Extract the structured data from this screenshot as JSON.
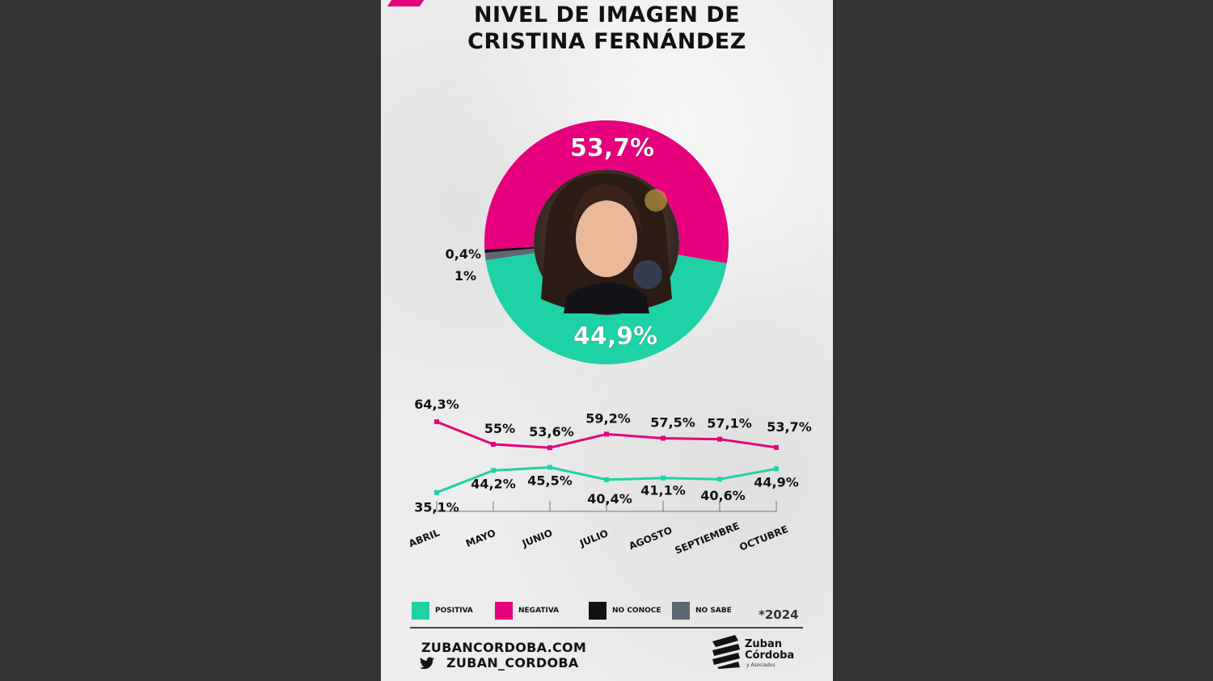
{
  "header": {
    "title_line1": "NIVEL DE IMAGEN DE",
    "title_line2": "CRISTINA FERNÁNDEZ"
  },
  "colors": {
    "positiva": "#1fd1a6",
    "negativa": "#e6007e",
    "no_conoce": "#111111",
    "no_sabe": "#5f6775"
  },
  "chart_data": [
    {
      "type": "pie",
      "variant": "donut",
      "slices": [
        {
          "name": "NEGATIVA",
          "value": 53.7,
          "label": "53,7%"
        },
        {
          "name": "POSITIVA",
          "value": 44.9,
          "label": "44,9%"
        },
        {
          "name": "NO SABE",
          "value": 1.0,
          "label": "1%"
        },
        {
          "name": "NO CONOCE",
          "value": 0.4,
          "label": "0,4%"
        }
      ]
    },
    {
      "type": "line",
      "categories": [
        "ABRIL",
        "MAYO",
        "JUNIO",
        "JULIO",
        "AGOSTO",
        "SEPTIEMBRE",
        "OCTUBRE"
      ],
      "series": [
        {
          "name": "NEGATIVA",
          "values": [
            64.3,
            55,
            53.6,
            59.2,
            57.5,
            57.1,
            53.7
          ],
          "labels": [
            "64,3%",
            "55%",
            "53,6%",
            "59,2%",
            "57,5%",
            "57,1%",
            "53,7%"
          ]
        },
        {
          "name": "POSITIVA",
          "values": [
            35.1,
            44.2,
            45.5,
            40.4,
            41.1,
            40.6,
            44.9
          ],
          "labels": [
            "35,1%",
            "44,2%",
            "45,5%",
            "40,4%",
            "41,1%",
            "40,6%",
            "44,9%"
          ]
        }
      ],
      "ylim": [
        20,
        80
      ]
    }
  ],
  "legend": [
    {
      "label": "POSITIVA",
      "color": "#1fd1a6"
    },
    {
      "label": "NEGATIVA",
      "color": "#e6007e"
    },
    {
      "label": "NO CONOCE",
      "color": "#111111"
    },
    {
      "label": "NO SABE",
      "color": "#5f6775"
    }
  ],
  "footer": {
    "year_note": "*2024",
    "website": "ZUBANCORDOBA.COM",
    "twitter_handle": "ZUBAN_CORDOBA",
    "logo_name_line1": "Zuban",
    "logo_name_line2": "Córdoba",
    "logo_sub": "y Asociados"
  }
}
